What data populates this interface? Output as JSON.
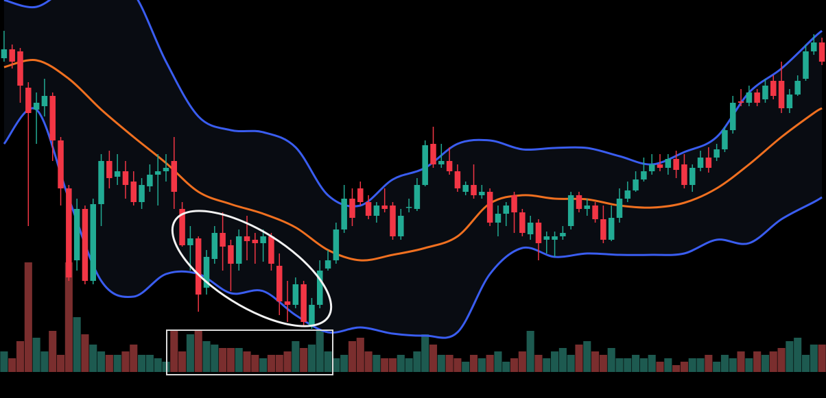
{
  "chart_data": {
    "type": "candlestick",
    "open": [
      515,
      528,
      525,
      472,
      440,
      445,
      460,
      395,
      325,
      220,
      295,
      190,
      302,
      365,
      342,
      350,
      335,
      305,
      328,
      345,
      350,
      365,
      295,
      242,
      252,
      180,
      222,
      260,
      242,
      215,
      255,
      250,
      245,
      255,
      212,
      160,
      155,
      185,
      125,
      155,
      208,
      220,
      265,
      310,
      325,
      305,
      285,
      300,
      300,
      255,
      298,
      295,
      330,
      390,
      360,
      365,
      350,
      320,
      330,
      315,
      320,
      275,
      288,
      315,
      290,
      258,
      275,
      250,
      250,
      255,
      270,
      315,
      295,
      300,
      280,
      250,
      282,
      310,
      322,
      338,
      350,
      360,
      355,
      368,
      360,
      330,
      355,
      370,
      370,
      382,
      410,
      452,
      450,
      465,
      455,
      482,
      482,
      442,
      462,
      485,
      525,
      538
    ],
    "high": [
      555,
      535,
      530,
      480,
      465,
      485,
      465,
      400,
      330,
      310,
      300,
      310,
      375,
      380,
      375,
      365,
      350,
      340,
      360,
      375,
      375,
      400,
      305,
      270,
      255,
      235,
      270,
      290,
      250,
      265,
      285,
      260,
      265,
      260,
      230,
      190,
      195,
      190,
      165,
      220,
      235,
      275,
      330,
      325,
      335,
      315,
      305,
      325,
      305,
      295,
      310,
      340,
      395,
      415,
      390,
      385,
      360,
      335,
      360,
      330,
      325,
      300,
      305,
      320,
      295,
      285,
      280,
      262,
      262,
      270,
      320,
      320,
      310,
      305,
      300,
      300,
      325,
      335,
      350,
      370,
      375,
      375,
      375,
      380,
      375,
      360,
      380,
      385,
      390,
      415,
      460,
      470,
      475,
      470,
      485,
      490,
      510,
      470,
      490,
      535,
      550,
      545
    ],
    "low": [
      510,
      500,
      450,
      270,
      390,
      430,
      365,
      300,
      190,
      205,
      185,
      185,
      270,
      325,
      330,
      310,
      300,
      295,
      320,
      300,
      335,
      295,
      240,
      205,
      145,
      170,
      215,
      205,
      175,
      205,
      220,
      215,
      218,
      205,
      140,
      130,
      150,
      125,
      120,
      150,
      205,
      215,
      260,
      270,
      300,
      280,
      275,
      290,
      250,
      250,
      290,
      292,
      328,
      355,
      355,
      345,
      320,
      315,
      310,
      310,
      270,
      255,
      270,
      260,
      255,
      250,
      220,
      230,
      225,
      250,
      265,
      290,
      285,
      275,
      245,
      248,
      275,
      305,
      320,
      335,
      345,
      350,
      345,
      340,
      325,
      320,
      350,
      348,
      365,
      378,
      405,
      445,
      445,
      445,
      450,
      455,
      435,
      435,
      460,
      482,
      520,
      505
    ],
    "close": [
      528,
      510,
      475,
      435,
      450,
      460,
      395,
      325,
      195,
      295,
      190,
      302,
      365,
      340,
      350,
      330,
      305,
      330,
      345,
      350,
      355,
      320,
      242,
      252,
      170,
      225,
      260,
      240,
      215,
      255,
      248,
      245,
      255,
      215,
      160,
      155,
      185,
      130,
      155,
      205,
      220,
      265,
      310,
      282,
      305,
      285,
      300,
      295,
      255,
      285,
      298,
      330,
      388,
      360,
      365,
      350,
      325,
      330,
      315,
      320,
      275,
      288,
      300,
      290,
      260,
      275,
      245,
      255,
      255,
      260,
      315,
      295,
      300,
      280,
      250,
      282,
      310,
      322,
      338,
      350,
      360,
      355,
      368,
      352,
      330,
      355,
      370,
      355,
      382,
      410,
      450,
      450,
      465,
      450,
      475,
      460,
      442,
      462,
      482,
      525,
      538,
      510
    ],
    "up_color": "#22ab94",
    "down_color": "#f23645",
    "ylim": [
      19,
      600
    ],
    "volume": [
      30,
      20,
      45,
      160,
      50,
      30,
      60,
      25,
      160,
      80,
      55,
      40,
      30,
      25,
      25,
      30,
      40,
      25,
      25,
      20,
      15,
      60,
      30,
      55,
      60,
      45,
      40,
      35,
      35,
      35,
      30,
      25,
      20,
      25,
      25,
      30,
      45,
      35,
      40,
      60,
      30,
      20,
      25,
      45,
      50,
      30,
      25,
      20,
      20,
      25,
      20,
      30,
      55,
      40,
      25,
      25,
      20,
      15,
      25,
      20,
      25,
      30,
      15,
      20,
      30,
      60,
      25,
      20,
      30,
      35,
      25,
      40,
      45,
      30,
      25,
      35,
      20,
      20,
      25,
      20,
      25,
      15,
      20,
      10,
      15,
      20,
      20,
      25,
      15,
      25,
      20,
      30,
      20,
      30,
      25,
      30,
      35,
      45,
      50,
      25,
      40,
      40
    ],
    "volume_lim": [
      0,
      200
    ],
    "volume_up_color": "#1d5a50",
    "volume_down_color": "#7a2e2e",
    "band_fill": "#090c12",
    "bands": {
      "x": [
        0,
        4,
        8,
        12,
        16,
        20,
        24,
        28,
        32,
        36,
        40,
        44,
        48,
        52,
        56,
        60,
        64,
        68,
        72,
        76,
        80,
        84,
        88,
        92,
        96,
        100,
        101
      ],
      "series": [
        {
          "color": "#3a5df0",
          "values": [
            600,
            590,
            620,
            640,
            610,
            510,
            430,
            410,
            407,
            385,
            315,
            300,
            338,
            355,
            390,
            395,
            382,
            384,
            384,
            372,
            360,
            378,
            400,
            465,
            500,
            545,
            555
          ]
        },
        {
          "color": "#f07020",
          "values": [
            502,
            512,
            485,
            440,
            400,
            362,
            320,
            302,
            288,
            268,
            235,
            220,
            228,
            238,
            255,
            303,
            315,
            310,
            309,
            300,
            297,
            304,
            325,
            360,
            400,
            435,
            442
          ]
        },
        {
          "color": "#3a5df0",
          "values": [
            390,
            440,
            310,
            190,
            167,
            200,
            200,
            172,
            175,
            140,
            115,
            122,
            113,
            110,
            115,
            200,
            238,
            225,
            230,
            228,
            228,
            230,
            250,
            245,
            280,
            305,
            312
          ]
        }
      ]
    }
  }
}
